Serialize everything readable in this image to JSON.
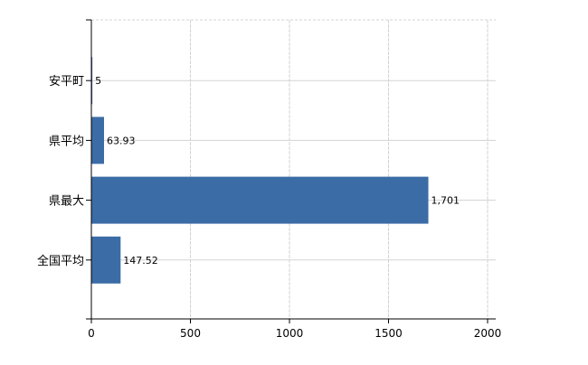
{
  "chart_data": {
    "type": "bar",
    "orientation": "horizontal",
    "categories": [
      "安平町",
      "県平均",
      "県最大",
      "全国平均"
    ],
    "values": [
      5,
      63.93,
      1701,
      147.52
    ],
    "data_labels": [
      "5",
      "63.93",
      "1,701",
      "147.52"
    ],
    "x_ticks": [
      "0",
      "500",
      "1000",
      "1500",
      "2000"
    ],
    "xlim": [
      0,
      2040
    ],
    "grid": true,
    "bar_color": "#3b6ca6",
    "grid_color": "#d3d3d3"
  }
}
